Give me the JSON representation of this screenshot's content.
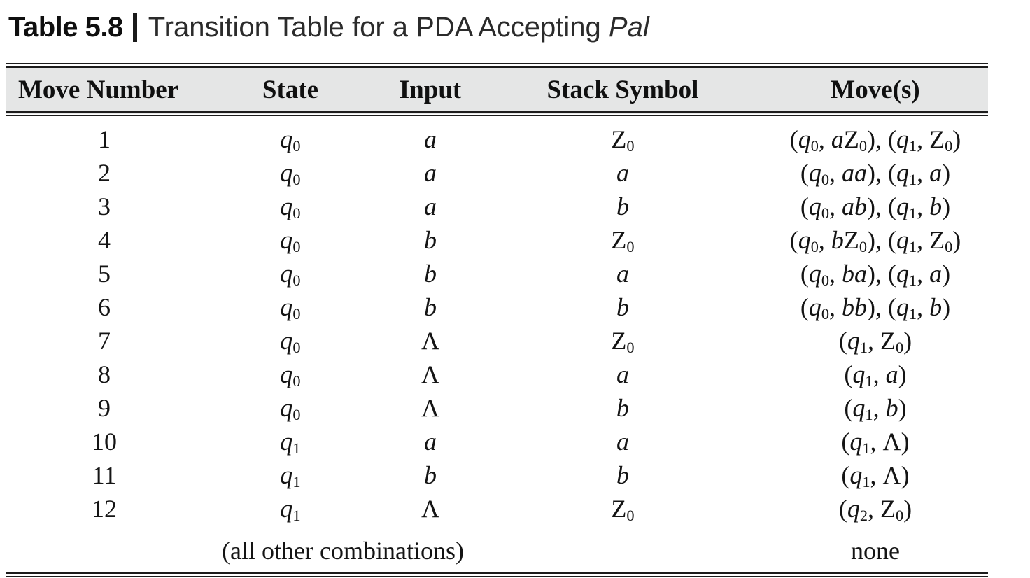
{
  "caption": {
    "label": "Table 5.8",
    "separator": "|",
    "text": "Transition Table for a PDA Accepting",
    "italic_word": "Pal"
  },
  "colors": {
    "header_bg": "#e5e6e6",
    "rule": "#1c1c1c",
    "text": "#141414"
  },
  "table": {
    "headers": [
      "Move Number",
      "State",
      "Input",
      "Stack Symbol",
      "Move(s)"
    ],
    "rows": [
      {
        "move_number": "1",
        "state": "q₀",
        "input": "a",
        "stack_symbol": "Z₀",
        "moves": "(q₀, aZ₀), (q₁, Z₀)"
      },
      {
        "move_number": "2",
        "state": "q₀",
        "input": "a",
        "stack_symbol": "a",
        "moves": "(q₀, aa), (q₁, a)"
      },
      {
        "move_number": "3",
        "state": "q₀",
        "input": "a",
        "stack_symbol": "b",
        "moves": "(q₀, ab), (q₁, b)"
      },
      {
        "move_number": "4",
        "state": "q₀",
        "input": "b",
        "stack_symbol": "Z₀",
        "moves": "(q₀, bZ₀), (q₁, Z₀)"
      },
      {
        "move_number": "5",
        "state": "q₀",
        "input": "b",
        "stack_symbol": "a",
        "moves": "(q₀, ba), (q₁, a)"
      },
      {
        "move_number": "6",
        "state": "q₀",
        "input": "b",
        "stack_symbol": "b",
        "moves": "(q₀, bb), (q₁, b)"
      },
      {
        "move_number": "7",
        "state": "q₀",
        "input": "Λ",
        "stack_symbol": "Z₀",
        "moves": "(q₁, Z₀)"
      },
      {
        "move_number": "8",
        "state": "q₀",
        "input": "Λ",
        "stack_symbol": "a",
        "moves": "(q₁, a)"
      },
      {
        "move_number": "9",
        "state": "q₀",
        "input": "Λ",
        "stack_symbol": "b",
        "moves": "(q₁, b)"
      },
      {
        "move_number": "10",
        "state": "q₁",
        "input": "a",
        "stack_symbol": "a",
        "moves": "(q₁, Λ)"
      },
      {
        "move_number": "11",
        "state": "q₁",
        "input": "b",
        "stack_symbol": "b",
        "moves": "(q₁, Λ)"
      },
      {
        "move_number": "12",
        "state": "q₁",
        "input": "Λ",
        "stack_symbol": "Z₀",
        "moves": "(q₂, Z₀)"
      }
    ],
    "footer": {
      "label": "(all other combinations)",
      "moves": "none"
    }
  }
}
